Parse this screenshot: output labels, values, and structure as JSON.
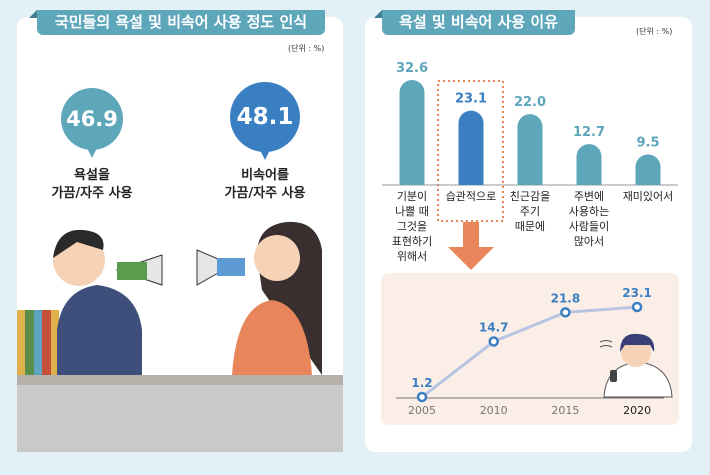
{
  "left": {
    "title": "국민들의 욕설 및 비속어 사용 정도 인식",
    "unit": "(단위 : %)",
    "items": [
      {
        "value": "46.9",
        "label1": "욕설을",
        "label2": "가끔/자주 사용",
        "color": "#5ea6ba"
      },
      {
        "value": "48.1",
        "label1": "비속어를",
        "label2": "가끔/자주 사용",
        "color": "#3a7fc1"
      }
    ]
  },
  "right": {
    "title": "욕설 및 비속어 사용 이유",
    "unit": "(단위 : %)"
  },
  "chart_data": [
    {
      "type": "bar",
      "categories": [
        "기분이 나쁠 때 그것을 표현하기 위해서",
        "습관적으로",
        "친근감을 주기 때문에",
        "주변에 사용하는 사람들이 많아서",
        "재미있어서"
      ],
      "category_lines": [
        [
          "기분이",
          "나쁠 때",
          "그것을",
          "표현하기",
          "위해서"
        ],
        [
          "습관적으로"
        ],
        [
          "친근감을",
          "주기",
          "때문에"
        ],
        [
          "주변에",
          "사용하는",
          "사람들이",
          "많아서"
        ],
        [
          "재미있어서"
        ]
      ],
      "values": [
        32.6,
        23.1,
        22.0,
        12.7,
        9.5
      ],
      "value_labels": [
        "32.6",
        "23.1",
        "22.0",
        "12.7",
        "9.5"
      ],
      "highlight": "습관적으로",
      "colors": {
        "bar": "#5ea6ba",
        "highlight": "#3a7fc1"
      }
    },
    {
      "type": "line",
      "x": [
        "2005",
        "2010",
        "2015",
        "2020"
      ],
      "values": [
        1.2,
        14.7,
        21.8,
        23.1
      ],
      "value_labels": [
        "1.2",
        "14.7",
        "21.8",
        "23.1"
      ],
      "colors": {
        "line": "#b9c4e3",
        "marker": "#3a7fc1"
      }
    }
  ]
}
